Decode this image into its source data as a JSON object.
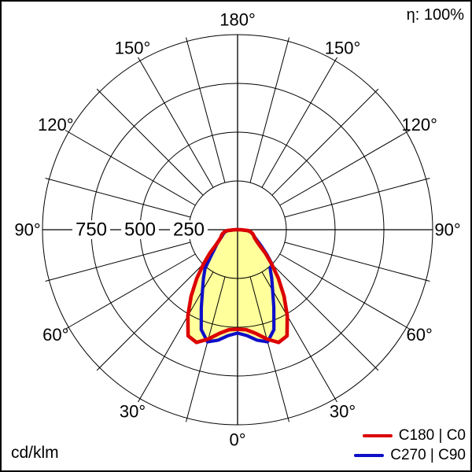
{
  "header": {
    "efficiency": "η: 100%"
  },
  "footer": {
    "unit": "cd/klm"
  },
  "chart_data": {
    "type": "polar-intensity-distribution",
    "unit": "cd/klm",
    "efficiency": "η: 100%",
    "radial_max": 1000,
    "grid": {
      "ring_values": [
        250,
        500,
        750,
        1000
      ],
      "spoke_step_deg": 15,
      "spoke_inner_value": 250
    },
    "radial_tick_labels": [
      {
        "value": 250,
        "label": "250"
      },
      {
        "value": 500,
        "label": "500"
      },
      {
        "value": 750,
        "label": "750"
      }
    ],
    "angle_labels": [
      {
        "gamma": 0,
        "label": "0°"
      },
      {
        "gamma": 30,
        "label": "30°"
      },
      {
        "gamma": 60,
        "label": "60°"
      },
      {
        "gamma": 90,
        "label": "90°"
      },
      {
        "gamma": 120,
        "label": "120°"
      },
      {
        "gamma": 150,
        "label": "150°"
      },
      {
        "gamma": 180,
        "label": "180°"
      },
      {
        "gamma": -30,
        "label": "30°"
      },
      {
        "gamma": -60,
        "label": "60°"
      },
      {
        "gamma": -90,
        "label": "90°"
      },
      {
        "gamma": -120,
        "label": "120°"
      },
      {
        "gamma": -150,
        "label": "150°"
      }
    ],
    "fill_color": "#ffff9c",
    "gamma_start": -90,
    "gamma_step": 5,
    "series": [
      {
        "name": "C180 | C0",
        "color": "#dc0000",
        "values": [
          15,
          55,
          70,
          80,
          88,
          95,
          110,
          135,
          185,
          245,
          325,
          415,
          510,
          600,
          615,
          580,
          540,
          515,
          510,
          515,
          540,
          580,
          615,
          600,
          510,
          415,
          325,
          245,
          185,
          135,
          110,
          95,
          88,
          80,
          70,
          55,
          15
        ]
      },
      {
        "name": "C270 | C90",
        "color": "#0f0fc8",
        "values": [
          12,
          50,
          65,
          74,
          82,
          92,
          108,
          130,
          155,
          195,
          260,
          305,
          360,
          440,
          545,
          595,
          575,
          545,
          530,
          545,
          575,
          595,
          545,
          440,
          360,
          305,
          260,
          250,
          195,
          150,
          120,
          100,
          88,
          78,
          68,
          50,
          12
        ]
      }
    ]
  }
}
